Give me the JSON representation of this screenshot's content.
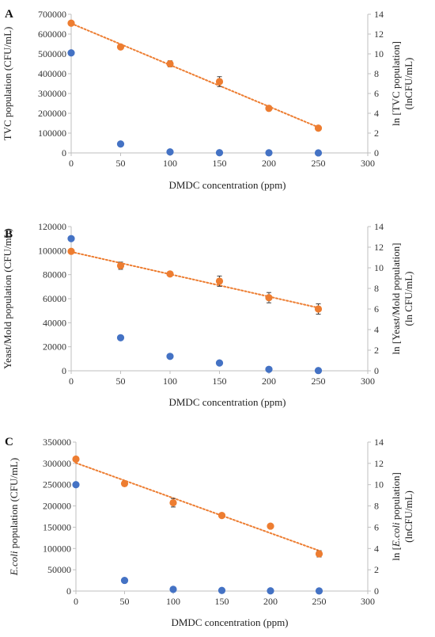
{
  "colors": {
    "scatter": "#4472C4",
    "trend": "#ED7D31",
    "axis": "#bfbfbf",
    "errorbar": "#404040"
  },
  "chart_data": [
    {
      "type": "scatter",
      "panel_label": "A",
      "xlabel": "DMDC concentration (ppm)",
      "ylabel": "TVC population (CFU/mL)",
      "y2label": "ln [TVC population]",
      "y2label_line2": "(lnCFU/mL)",
      "ylabel_parts": [],
      "y2label_parts": [],
      "xlim": [
        0,
        300
      ],
      "ylim": [
        0,
        700000
      ],
      "y2lim": [
        0,
        14
      ],
      "x_ticks": [
        "0",
        "50",
        "100",
        "150",
        "200",
        "250",
        "300"
      ],
      "y_ticks": [
        "0",
        "100000",
        "200000",
        "300000",
        "400000",
        "500000",
        "600000",
        "700000"
      ],
      "y2_ticks": [
        "0",
        "2",
        "4",
        "6",
        "8",
        "10",
        "12",
        "14"
      ],
      "grid": false,
      "series": [
        {
          "axis": "left",
          "points": [
            [
              0,
              505000
            ],
            [
              50,
              45000
            ],
            [
              100,
              5000
            ],
            [
              150,
              1000
            ],
            [
              200,
              500
            ],
            [
              250,
              200
            ]
          ]
        },
        {
          "axis": "right",
          "trendline": true,
          "points": [
            [
              0,
              13.1,
              0
            ],
            [
              50,
              10.7,
              0.2
            ],
            [
              100,
              9.0,
              0.3
            ],
            [
              150,
              7.2,
              0.5
            ],
            [
              200,
              4.5,
              0.25
            ],
            [
              250,
              2.5,
              0.2
            ]
          ]
        }
      ]
    },
    {
      "type": "scatter",
      "panel_label": "B",
      "xlabel": "DMDC concentration (ppm)",
      "ylabel": "Yeast/Mold population (CFU/mL)",
      "y2label": "ln [Yeast/Mold population]",
      "y2label_line2": "(ln CFU/mL)",
      "ylabel_parts": [],
      "y2label_parts": [],
      "xlim": [
        0,
        300
      ],
      "ylim": [
        0,
        120000
      ],
      "y2lim": [
        0,
        14
      ],
      "x_ticks": [
        "0",
        "50",
        "100",
        "150",
        "200",
        "250",
        "300"
      ],
      "y_ticks": [
        "0",
        "20000",
        "40000",
        "60000",
        "80000",
        "100000",
        "120000"
      ],
      "y2_ticks": [
        "0",
        "2",
        "4",
        "6",
        "8",
        "10",
        "12",
        "14"
      ],
      "grid": false,
      "series": [
        {
          "axis": "left",
          "points": [
            [
              0,
              110000
            ],
            [
              50,
              27500
            ],
            [
              100,
              12000
            ],
            [
              150,
              6500
            ],
            [
              200,
              1200
            ],
            [
              250,
              200
            ]
          ]
        },
        {
          "axis": "right",
          "trendline": true,
          "points": [
            [
              0,
              11.6,
              0
            ],
            [
              50,
              10.2,
              0.35
            ],
            [
              100,
              9.4,
              0.15
            ],
            [
              150,
              8.7,
              0.5
            ],
            [
              200,
              7.1,
              0.5
            ],
            [
              250,
              6.0,
              0.5
            ]
          ]
        }
      ]
    },
    {
      "type": "scatter",
      "panel_label": "C",
      "xlabel": "DMDC concentration (ppm)",
      "ylabel": "",
      "ylabel_parts": [
        {
          "text": "E.coli",
          "italic": true
        },
        {
          "text": " population (CFU/mL)",
          "italic": false
        }
      ],
      "y2label": "",
      "y2label_parts": [
        {
          "text": "ln [",
          "italic": false
        },
        {
          "text": "E.coli",
          "italic": true
        },
        {
          "text": " population]",
          "italic": false
        }
      ],
      "y2label_line2": "(lnCFU/mL)",
      "xlim": [
        0,
        300
      ],
      "ylim": [
        0,
        350000
      ],
      "y2lim": [
        0,
        14
      ],
      "x_ticks": [
        "0",
        "50",
        "100",
        "150",
        "200",
        "250",
        "300"
      ],
      "y_ticks": [
        "0",
        "50000",
        "100000",
        "150000",
        "200000",
        "250000",
        "300000",
        "350000"
      ],
      "y2_ticks": [
        "0",
        "2",
        "4",
        "6",
        "8",
        "10",
        "12",
        "14"
      ],
      "grid": false,
      "series": [
        {
          "axis": "left",
          "points": [
            [
              0,
              250000
            ],
            [
              50,
              25000
            ],
            [
              100,
              4000
            ],
            [
              150,
              1500
            ],
            [
              200,
              500
            ],
            [
              250,
              200
            ]
          ]
        },
        {
          "axis": "right",
          "trendline": true,
          "points": [
            [
              0,
              12.4,
              0
            ],
            [
              50,
              10.1,
              0.1
            ],
            [
              100,
              8.3,
              0.4
            ],
            [
              150,
              7.1,
              0.2
            ],
            [
              200,
              6.1,
              0.15
            ],
            [
              250,
              3.5,
              0.3
            ]
          ]
        }
      ]
    }
  ]
}
